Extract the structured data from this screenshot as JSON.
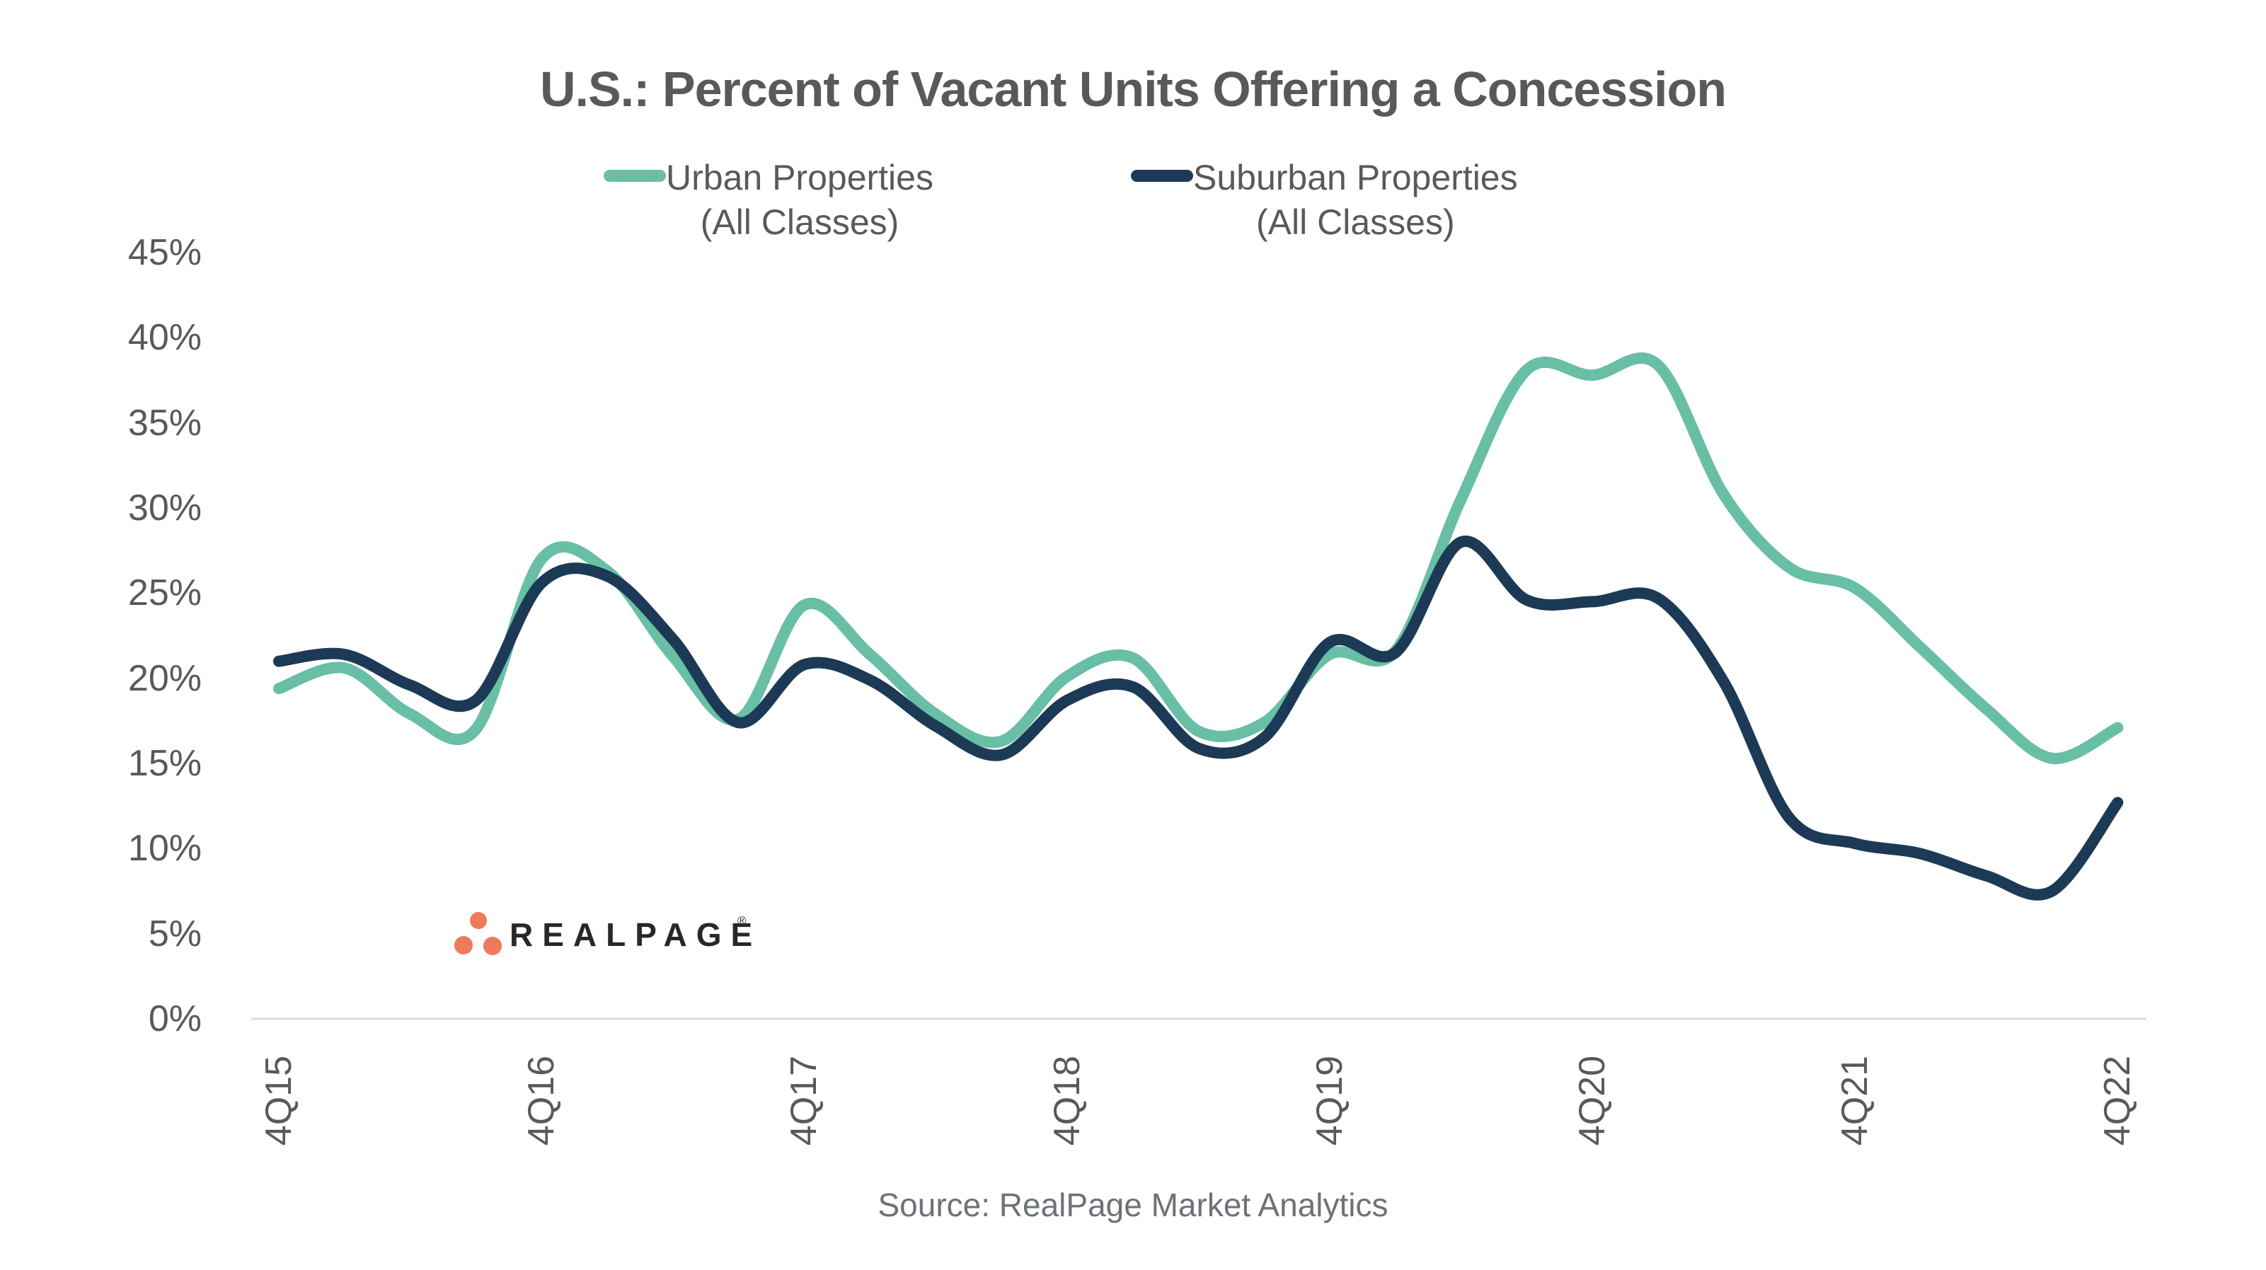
{
  "title": "U.S.: Percent of Vacant Units Offering a Concession",
  "legend": {
    "items": [
      {
        "line1": "Urban Properties",
        "line2": "(All Classes)",
        "color": "#68BFA5"
      },
      {
        "line1": "Suburban Properties",
        "line2": "(All Classes)",
        "color": "#1C3A55"
      }
    ]
  },
  "source_text": "Source: RealPage Market Analytics",
  "logo": {
    "text": "REALPAGE",
    "registered_mark": "®",
    "dot_color": "#EF7A59",
    "text_color": "#26282A"
  },
  "colors": {
    "urban_line": "#68BFA5",
    "suburban_line": "#1C3A55",
    "axis_text": "#595959",
    "title_text": "#58595B",
    "source_text": "#6D7278",
    "axis_line": "#D9D9D9"
  },
  "chart_data": {
    "type": "line",
    "title": "U.S.: Percent of Vacant Units Offering a Concession",
    "x": [
      "4Q15",
      "1Q16",
      "2Q16",
      "3Q16",
      "4Q16",
      "1Q17",
      "2Q17",
      "3Q17",
      "4Q17",
      "1Q18",
      "2Q18",
      "3Q18",
      "4Q18",
      "1Q19",
      "2Q19",
      "3Q19",
      "4Q19",
      "1Q20",
      "2Q20",
      "3Q20",
      "4Q20",
      "1Q21",
      "2Q21",
      "3Q21",
      "4Q21",
      "1Q22",
      "2Q22",
      "3Q22",
      "4Q22"
    ],
    "x_ticks_shown": [
      "4Q15",
      "4Q16",
      "4Q17",
      "4Q18",
      "4Q19",
      "4Q20",
      "4Q21",
      "4Q22"
    ],
    "series": [
      {
        "name": "Urban Properties (All Classes)",
        "color": "#68BFA5",
        "values": [
          19.4,
          20.6,
          17.9,
          17.0,
          27.0,
          26.3,
          21.3,
          17.6,
          24.3,
          21.4,
          17.9,
          16.3,
          20.1,
          21.2,
          16.9,
          17.4,
          21.4,
          21.6,
          30.5,
          38.1,
          37.8,
          38.4,
          30.8,
          26.5,
          25.3,
          21.8,
          18.2,
          15.3,
          17.1
        ]
      },
      {
        "name": "Suburban Properties (All Classes)",
        "color": "#1C3A55",
        "values": [
          21.0,
          21.4,
          19.6,
          18.7,
          25.6,
          26.0,
          22.3,
          17.4,
          20.8,
          19.9,
          17.2,
          15.5,
          18.7,
          19.5,
          15.9,
          16.5,
          22.1,
          21.5,
          28.0,
          24.6,
          24.5,
          24.7,
          19.8,
          11.8,
          10.3,
          9.7,
          8.4,
          7.5,
          12.7
        ]
      }
    ],
    "ylabel": "",
    "xlabel": "",
    "ylim": [
      0,
      45
    ],
    "y_ticks": [
      "0%",
      "5%",
      "10%",
      "15%",
      "20%",
      "25%",
      "30%",
      "35%",
      "40%",
      "45%"
    ],
    "y_tick_values": [
      0,
      5,
      10,
      15,
      20,
      25,
      30,
      35,
      40,
      45
    ],
    "grid": "off",
    "legend_position": "top-center",
    "line_style": "smooth"
  }
}
